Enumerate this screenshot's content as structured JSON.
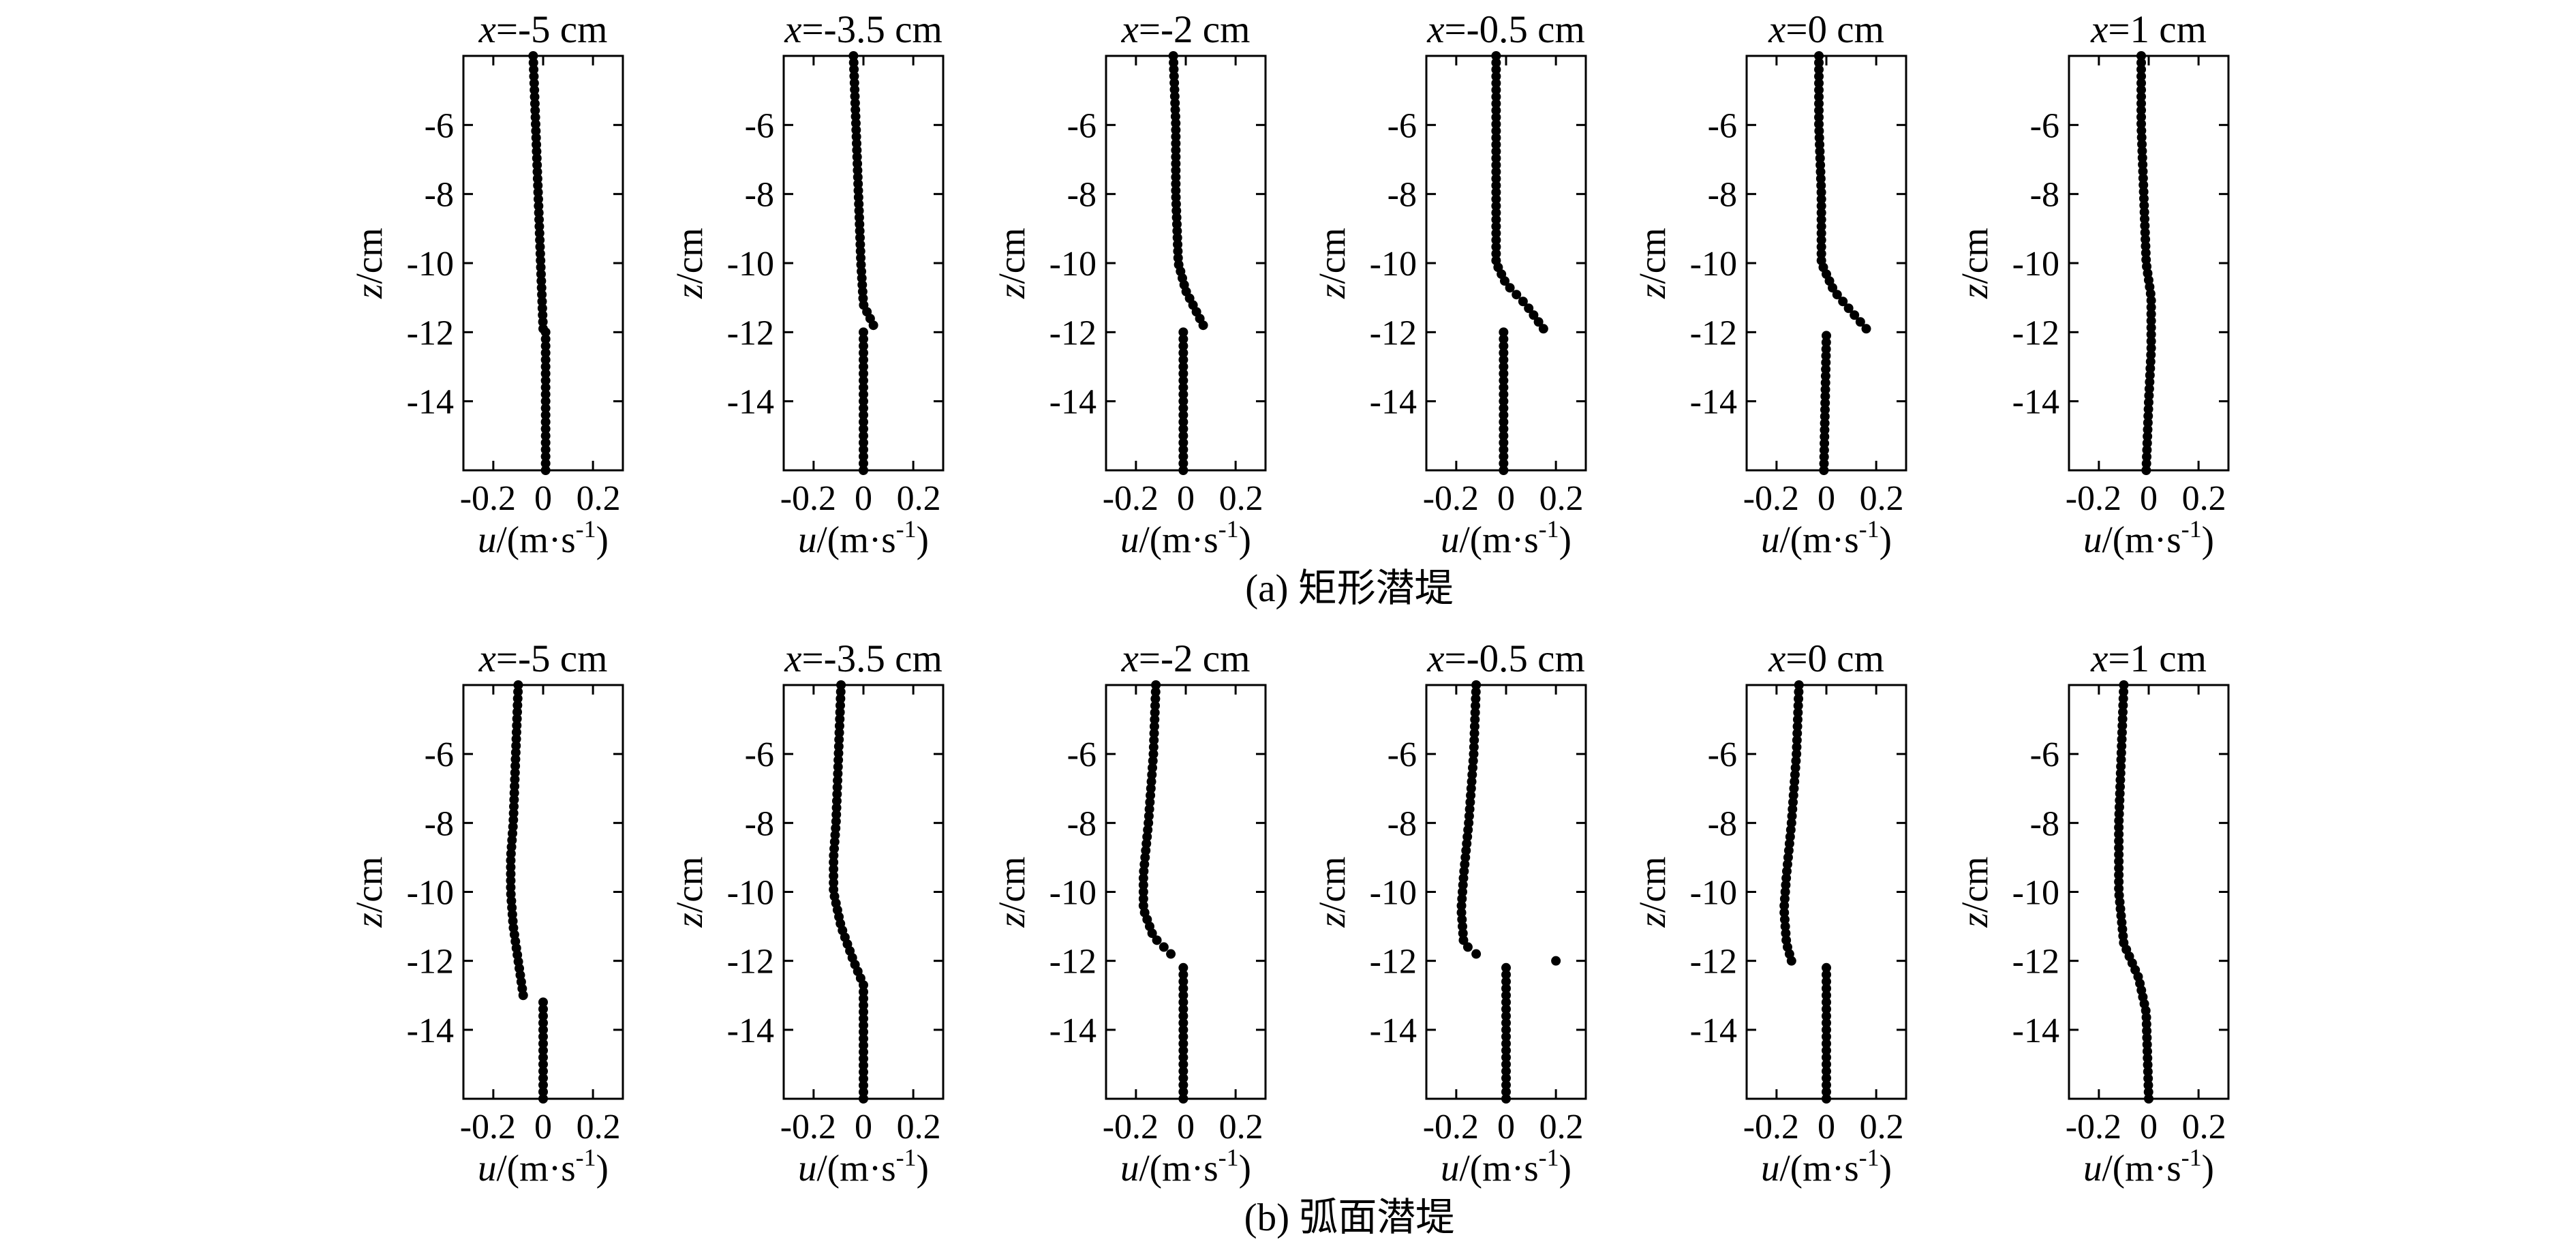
{
  "figure": {
    "x_label_var": "u",
    "x_label_unit": "/(m·s",
    "x_label_exp": "-1",
    "x_label_close": ")",
    "y_label_var": "z",
    "y_label_unit": "/cm"
  },
  "chart_data": [
    {
      "caption": "(a) 矩形潜堤",
      "type": "scatter",
      "xlim": [
        -0.32,
        0.32
      ],
      "ylim": [
        -16,
        -4
      ],
      "xticks": [
        -0.2,
        0,
        0.2
      ],
      "xtick_labels": [
        "-0.2",
        "0",
        "0.2"
      ],
      "yticks": [
        -6,
        -8,
        -10,
        -12,
        -14
      ],
      "ytick_labels": [
        "-6",
        "-8",
        "-10",
        "-12",
        "-14"
      ],
      "panels": [
        {
          "title_var": "x",
          "title_value": "=-5 cm",
          "profile": [
            [
              -4.0,
              -0.04
            ],
            [
              -6.0,
              -0.03
            ],
            [
              -8.0,
              -0.02
            ],
            [
              -10.0,
              -0.01
            ],
            [
              -11.9,
              0.0
            ]
          ],
          "lower": [
            [
              -12.0,
              0.01
            ],
            [
              -16.0,
              0.01
            ]
          ]
        },
        {
          "title_var": "x",
          "title_value": "=-3.5 cm",
          "profile": [
            [
              -4.0,
              -0.04
            ],
            [
              -6.0,
              -0.03
            ],
            [
              -8.0,
              -0.02
            ],
            [
              -10.0,
              -0.01
            ],
            [
              -11.2,
              0.0
            ],
            [
              -11.8,
              0.04
            ]
          ],
          "lower": [
            [
              -12.0,
              0.0
            ],
            [
              -16.0,
              0.0
            ]
          ]
        },
        {
          "title_var": "x",
          "title_value": "=-2 cm",
          "profile": [
            [
              -4.0,
              -0.05
            ],
            [
              -6.0,
              -0.04
            ],
            [
              -8.0,
              -0.04
            ],
            [
              -10.0,
              -0.03
            ],
            [
              -10.8,
              0.0
            ],
            [
              -11.8,
              0.07
            ]
          ],
          "lower": [
            [
              -12.0,
              -0.01
            ],
            [
              -16.0,
              -0.01
            ]
          ]
        },
        {
          "title_var": "x",
          "title_value": "=-0.5 cm",
          "profile": [
            [
              -4.0,
              -0.04
            ],
            [
              -6.0,
              -0.04
            ],
            [
              -8.0,
              -0.04
            ],
            [
              -10.0,
              -0.04
            ],
            [
              -10.6,
              0.0
            ],
            [
              -11.2,
              0.08
            ],
            [
              -11.9,
              0.15
            ]
          ],
          "lower": [
            [
              -12.0,
              -0.01
            ],
            [
              -16.0,
              -0.01
            ]
          ]
        },
        {
          "title_var": "x",
          "title_value": "=0 cm",
          "profile": [
            [
              -4.0,
              -0.03
            ],
            [
              -6.0,
              -0.03
            ],
            [
              -8.0,
              -0.02
            ],
            [
              -10.0,
              -0.02
            ],
            [
              -10.8,
              0.03
            ],
            [
              -11.4,
              0.1
            ],
            [
              -11.9,
              0.16
            ]
          ],
          "lower": [
            [
              -12.1,
              0.0
            ],
            [
              -16.0,
              -0.01
            ]
          ]
        },
        {
          "title_var": "x",
          "title_value": "=1 cm",
          "profile": [
            [
              -4.0,
              -0.03
            ],
            [
              -6.0,
              -0.03
            ],
            [
              -8.0,
              -0.02
            ],
            [
              -10.0,
              -0.01
            ],
            [
              -11.0,
              0.01
            ],
            [
              -12.5,
              0.01
            ],
            [
              -14.0,
              0.0
            ],
            [
              -16.0,
              -0.01
            ]
          ],
          "lower": []
        }
      ]
    },
    {
      "caption": "(b) 弧面潜堤",
      "type": "scatter",
      "xlim": [
        -0.32,
        0.32
      ],
      "ylim": [
        -16,
        -4
      ],
      "xticks": [
        -0.2,
        0,
        0.2
      ],
      "xtick_labels": [
        "-0.2",
        "0",
        "0.2"
      ],
      "yticks": [
        -6,
        -8,
        -10,
        -12,
        -14
      ],
      "ytick_labels": [
        "-6",
        "-8",
        "-10",
        "-12",
        "-14"
      ],
      "panels": [
        {
          "title_var": "x",
          "title_value": "=-5 cm",
          "profile": [
            [
              -4.0,
              -0.1
            ],
            [
              -6.0,
              -0.11
            ],
            [
              -8.0,
              -0.12
            ],
            [
              -9.0,
              -0.13
            ],
            [
              -10.0,
              -0.13
            ],
            [
              -11.0,
              -0.12
            ],
            [
              -12.0,
              -0.1
            ],
            [
              -13.0,
              -0.08
            ]
          ],
          "lower": [
            [
              -13.2,
              0.0
            ],
            [
              -16.0,
              0.0
            ]
          ]
        },
        {
          "title_var": "x",
          "title_value": "=-3.5 cm",
          "profile": [
            [
              -4.0,
              -0.09
            ],
            [
              -6.0,
              -0.1
            ],
            [
              -8.0,
              -0.11
            ],
            [
              -9.0,
              -0.12
            ],
            [
              -10.0,
              -0.12
            ],
            [
              -11.0,
              -0.09
            ],
            [
              -12.0,
              -0.04
            ],
            [
              -12.7,
              0.0
            ]
          ],
          "lower": [
            [
              -12.9,
              0.0
            ],
            [
              -16.0,
              0.0
            ]
          ]
        },
        {
          "title_var": "x",
          "title_value": "=-2 cm",
          "profile": [
            [
              -4.0,
              -0.12
            ],
            [
              -6.0,
              -0.13
            ],
            [
              -8.0,
              -0.15
            ],
            [
              -9.5,
              -0.17
            ],
            [
              -10.5,
              -0.17
            ],
            [
              -11.3,
              -0.13
            ],
            [
              -11.8,
              -0.06
            ]
          ],
          "lower": [
            [
              -12.2,
              -0.01
            ],
            [
              -16.0,
              -0.01
            ]
          ]
        },
        {
          "title_var": "x",
          "title_value": "=-0.5 cm",
          "profile": [
            [
              -4.0,
              -0.12
            ],
            [
              -6.0,
              -0.13
            ],
            [
              -8.0,
              -0.15
            ],
            [
              -9.5,
              -0.17
            ],
            [
              -10.5,
              -0.18
            ],
            [
              -11.5,
              -0.17
            ],
            [
              -11.8,
              -0.12
            ]
          ],
          "lower": [
            [
              -12.2,
              0.0
            ],
            [
              -16.0,
              0.0
            ]
          ],
          "extra": [
            [
              -12.0,
              0.2
            ]
          ]
        },
        {
          "title_var": "x",
          "title_value": "=0 cm",
          "profile": [
            [
              -4.0,
              -0.11
            ],
            [
              -6.0,
              -0.12
            ],
            [
              -8.0,
              -0.14
            ],
            [
              -9.5,
              -0.16
            ],
            [
              -10.5,
              -0.17
            ],
            [
              -11.5,
              -0.16
            ],
            [
              -12.0,
              -0.14
            ]
          ],
          "lower": [
            [
              -12.2,
              0.0
            ],
            [
              -16.0,
              0.0
            ]
          ]
        },
        {
          "title_var": "x",
          "title_value": "=1 cm",
          "profile": [
            [
              -4.0,
              -0.1
            ],
            [
              -6.0,
              -0.11
            ],
            [
              -8.0,
              -0.12
            ],
            [
              -10.0,
              -0.12
            ],
            [
              -11.5,
              -0.1
            ],
            [
              -12.5,
              -0.04
            ],
            [
              -13.5,
              -0.01
            ],
            [
              -16.0,
              0.0
            ]
          ],
          "lower": []
        }
      ]
    }
  ]
}
